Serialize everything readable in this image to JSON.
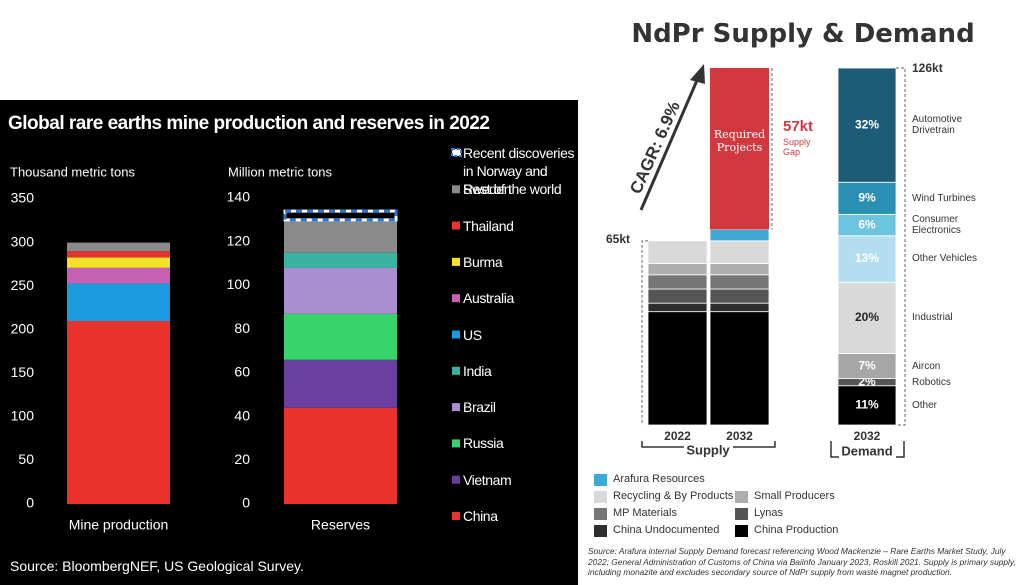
{
  "left_panel": {
    "title": "Global rare earths mine production and reserves in 2022",
    "source": "Source: BloombergNEF, US Geological Survey."
  },
  "right_panel": {
    "title": "NdPr Supply & Demand",
    "source": "Source: Arafura internal Supply Demand forecast referencing Wood Mackenzie – Rare Earths Market Study, July 2022; General Administration of Customs of China via Baiinfo January 2023, Roskill 2021. Supply is primary supply, including monazite and excludes secondary source of NdPr supply from waste magnet production."
  },
  "chart_data": [
    {
      "type": "stacked_bar",
      "categories": [
        "Mine production",
        "Reserves"
      ],
      "panels": [
        {
          "ylabel": "Thousand metric tons",
          "ylim": [
            0,
            350
          ],
          "yticks": [
            0,
            50,
            100,
            150,
            200,
            250,
            300,
            350
          ]
        },
        {
          "ylabel": "Million metric tons",
          "ylim": [
            0,
            140
          ],
          "yticks": [
            0,
            20,
            40,
            60,
            80,
            100,
            120,
            140
          ]
        }
      ],
      "series": [
        {
          "name": "China",
          "color": "#e8322b",
          "values": [
            210,
            44
          ]
        },
        {
          "name": "Vietnam",
          "color": "#6a3fa0",
          "values": [
            0,
            22
          ]
        },
        {
          "name": "Russia",
          "color": "#36d46b",
          "values": [
            0,
            21
          ]
        },
        {
          "name": "Brazil",
          "color": "#a98fd0",
          "values": [
            0,
            21
          ]
        },
        {
          "name": "India",
          "color": "#3ab3a2",
          "values": [
            0,
            7
          ]
        },
        {
          "name": "US",
          "color": "#1a9be0",
          "values": [
            43,
            0
          ]
        },
        {
          "name": "Australia",
          "color": "#c660b4",
          "values": [
            18,
            0
          ]
        },
        {
          "name": "Burma",
          "color": "#f5e02a",
          "values": [
            12,
            0
          ]
        },
        {
          "name": "Thailand",
          "color": "#e8322b",
          "values": [
            7,
            0
          ]
        },
        {
          "name": "Rest of the world",
          "color": "#8a8a8a",
          "values": [
            10,
            15
          ]
        },
        {
          "name": "Recent discoveries in Norway and Sweden",
          "color": "#2a78d6",
          "pattern": "dashed",
          "values": [
            null,
            4
          ]
        }
      ]
    },
    {
      "type": "stacked_bar",
      "categories": [
        "2022",
        "2032"
      ],
      "group_label": "Supply",
      "annotation": "CAGR: 6.9%",
      "totals": [
        65,
        null
      ],
      "total_labels": [
        "65kt",
        null
      ],
      "series": [
        {
          "name": "China Production",
          "color": "#000000",
          "values": [
            40,
            40
          ]
        },
        {
          "name": "China Undocumented",
          "color": "#2e2e2e",
          "values": [
            3,
            3
          ]
        },
        {
          "name": "Lynas",
          "color": "#555555",
          "values": [
            5,
            5
          ]
        },
        {
          "name": "MP Materials",
          "color": "#767676",
          "values": [
            5,
            5
          ]
        },
        {
          "name": "Small Producers",
          "color": "#aeaeae",
          "values": [
            4,
            4
          ]
        },
        {
          "name": "Recycling & By Products",
          "color": "#d9d9d9",
          "values": [
            8,
            8
          ]
        },
        {
          "name": "Arafura Resources",
          "color": "#3fa9d6",
          "values": [
            null,
            4
          ]
        }
      ],
      "gap": {
        "name": "Required Projects",
        "color": "#d2393f",
        "values": [
          null,
          57
        ],
        "value_labels": [
          null,
          "57kt"
        ],
        "note": "Supply Gap"
      }
    },
    {
      "type": "stacked_bar",
      "categories": [
        "2032"
      ],
      "group_label": "Demand",
      "total": 126,
      "total_label": "126kt",
      "series": [
        {
          "name": "Other",
          "color": "#000000",
          "values": [
            11
          ],
          "value_labels": [
            "11%"
          ]
        },
        {
          "name": "Robotics",
          "color": "#555555",
          "values": [
            2
          ],
          "value_labels": [
            "2%"
          ]
        },
        {
          "name": "Aircon",
          "color": "#a6a6a6",
          "values": [
            7
          ],
          "value_labels": [
            "7%"
          ]
        },
        {
          "name": "Industrial",
          "color": "#d9d9d9",
          "values": [
            20
          ],
          "value_labels": [
            "20%"
          ]
        },
        {
          "name": "Other Vehicles",
          "color": "#b3def0",
          "values": [
            13
          ],
          "value_labels": [
            "13%"
          ]
        },
        {
          "name": "Consumer Electronics",
          "color": "#6cc4e0",
          "values": [
            6
          ],
          "value_labels": [
            "6%"
          ]
        },
        {
          "name": "Wind Turbines",
          "color": "#2a8fb5",
          "values": [
            9
          ],
          "value_labels": [
            "9%"
          ]
        },
        {
          "name": "Automotive Drivetrain",
          "color": "#1d5b77",
          "values": [
            32
          ],
          "value_labels": [
            "32%"
          ]
        }
      ]
    }
  ]
}
